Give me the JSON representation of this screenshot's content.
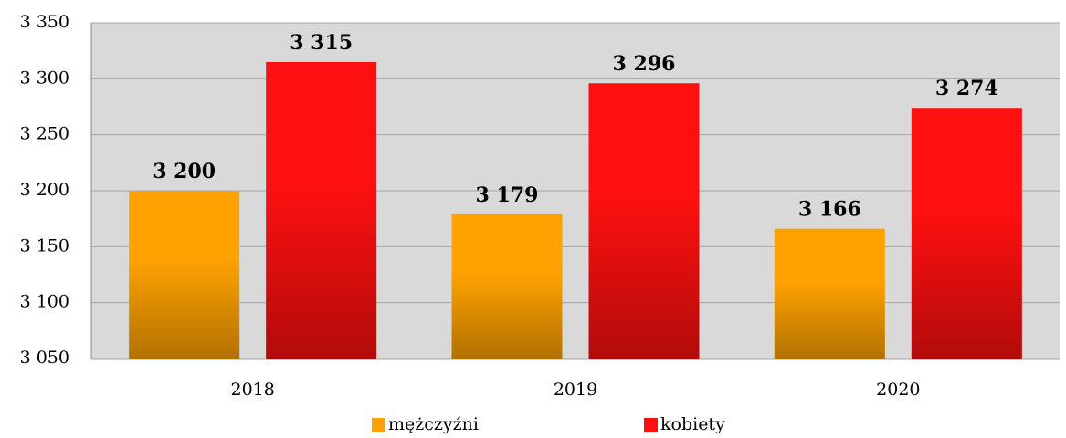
{
  "chart_data": {
    "type": "bar",
    "categories": [
      "2018",
      "2019",
      "2020"
    ],
    "series": [
      {
        "name": "mężczyźni",
        "color": "#ffa200",
        "values": [
          3200,
          3179,
          3166
        ],
        "value_labels": [
          "3 200",
          "3 179",
          "3 166"
        ]
      },
      {
        "name": "kobiety",
        "color": "#ff1010",
        "values": [
          3315,
          3296,
          3274
        ],
        "value_labels": [
          "3 315",
          "3 296",
          "3 274"
        ]
      }
    ],
    "ylim": [
      3050,
      3350
    ],
    "yticks": [
      {
        "value": 3050,
        "label": "3 050"
      },
      {
        "value": 3100,
        "label": "3 100"
      },
      {
        "value": 3150,
        "label": "3 150"
      },
      {
        "value": 3200,
        "label": "3 200"
      },
      {
        "value": 3250,
        "label": "3 250"
      },
      {
        "value": 3300,
        "label": "3 300"
      },
      {
        "value": 3350,
        "label": "3 350"
      }
    ],
    "grid": true,
    "legend": "bottom"
  }
}
